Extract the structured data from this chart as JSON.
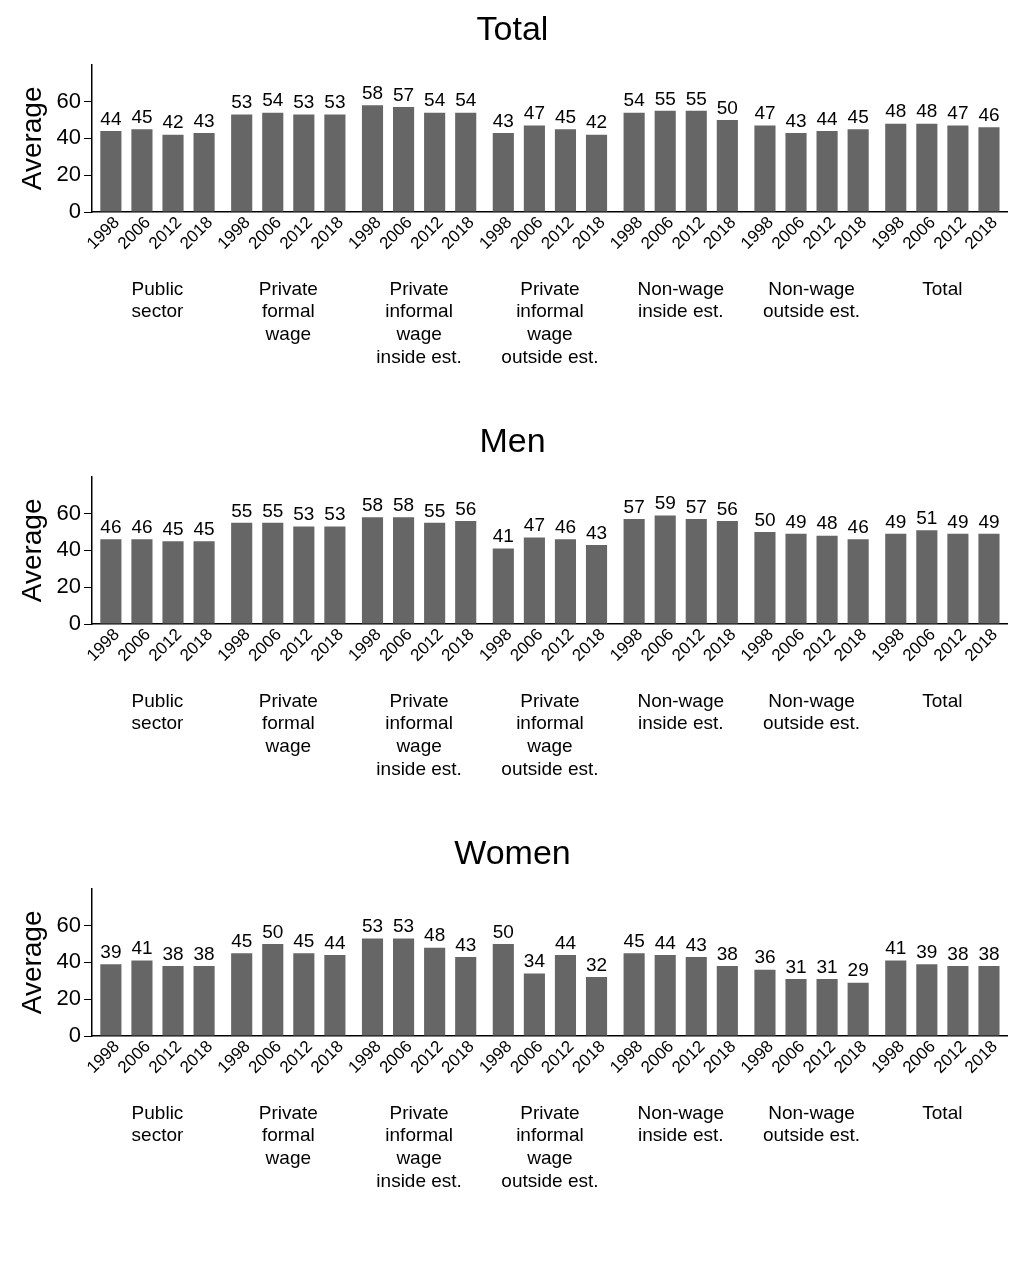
{
  "chart_data": [
    {
      "type": "bar",
      "title": "Total",
      "ylabel": "Average",
      "categories": [
        "Public sector",
        "Private formal wage",
        "Private informal wage inside est.",
        "Private informal wage outside est.",
        "Non-wage inside est.",
        "Non-wage outside est.",
        "Total"
      ],
      "ylim": [
        0,
        80
      ],
      "yticks": [
        0,
        20,
        40,
        60
      ],
      "data_labels": true,
      "series": [
        {
          "name": "1998",
          "color": "#666666",
          "values": [
            44,
            53,
            58,
            43,
            54,
            47,
            48
          ]
        },
        {
          "name": "2006",
          "color": "#666666",
          "values": [
            45,
            54,
            57,
            47,
            55,
            43,
            48
          ]
        },
        {
          "name": "2012",
          "color": "#666666",
          "values": [
            42,
            53,
            54,
            45,
            55,
            44,
            47
          ]
        },
        {
          "name": "2018",
          "color": "#666666",
          "values": [
            43,
            53,
            54,
            42,
            50,
            45,
            46
          ]
        }
      ]
    },
    {
      "type": "bar",
      "title": "Men",
      "ylabel": "Average",
      "categories": [
        "Public sector",
        "Private formal wage",
        "Private informal wage inside est.",
        "Private informal wage outside est.",
        "Non-wage inside est.",
        "Non-wage outside est.",
        "Total"
      ],
      "ylim": [
        0,
        80
      ],
      "yticks": [
        0,
        20,
        40,
        60
      ],
      "data_labels": true,
      "series": [
        {
          "name": "1998",
          "color": "#666666",
          "values": [
            46,
            55,
            58,
            41,
            57,
            50,
            49
          ]
        },
        {
          "name": "2006",
          "color": "#666666",
          "values": [
            46,
            55,
            58,
            47,
            59,
            49,
            51
          ]
        },
        {
          "name": "2012",
          "color": "#666666",
          "values": [
            45,
            53,
            55,
            46,
            57,
            48,
            49
          ]
        },
        {
          "name": "2018",
          "color": "#666666",
          "values": [
            45,
            53,
            56,
            43,
            56,
            46,
            49
          ]
        }
      ]
    },
    {
      "type": "bar",
      "title": "Women",
      "ylabel": "Average",
      "categories": [
        "Public sector",
        "Private formal wage",
        "Private informal wage inside est.",
        "Private informal wage outside est.",
        "Non-wage inside est.",
        "Non-wage outside est.",
        "Total"
      ],
      "ylim": [
        0,
        80
      ],
      "yticks": [
        0,
        20,
        40,
        60
      ],
      "data_labels": true,
      "series": [
        {
          "name": "1998",
          "color": "#666666",
          "values": [
            39,
            45,
            53,
            50,
            45,
            36,
            41
          ]
        },
        {
          "name": "2006",
          "color": "#666666",
          "values": [
            41,
            50,
            53,
            34,
            44,
            31,
            39
          ]
        },
        {
          "name": "2012",
          "color": "#666666",
          "values": [
            38,
            45,
            48,
            44,
            43,
            31,
            38
          ]
        },
        {
          "name": "2018",
          "color": "#666666",
          "values": [
            38,
            44,
            43,
            32,
            38,
            29,
            38
          ]
        }
      ]
    }
  ]
}
